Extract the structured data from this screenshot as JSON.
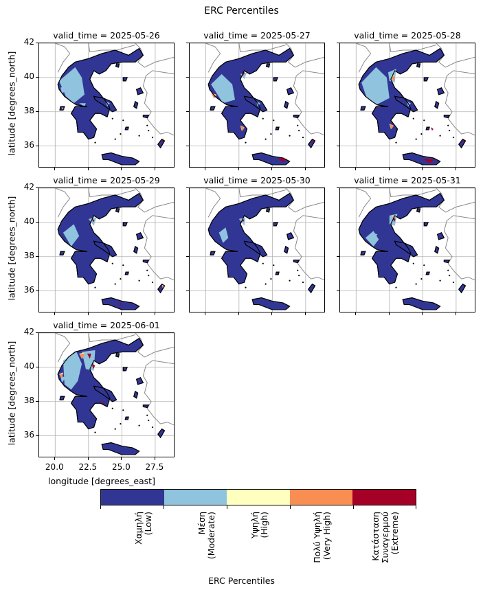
{
  "figure": {
    "title": "ERC Percentiles"
  },
  "panels": [
    {
      "label": "valid_time = 2025-05-26"
    },
    {
      "label": "valid_time = 2025-05-27"
    },
    {
      "label": "valid_time = 2025-05-28"
    },
    {
      "label": "valid_time = 2025-05-29"
    },
    {
      "label": "valid_time = 2025-05-30"
    },
    {
      "label": "valid_time = 2025-05-31"
    },
    {
      "label": "valid_time = 2025-06-01"
    }
  ],
  "axes": {
    "ylabel": "latitude [degrees_north]",
    "xlabel": "longitude [degrees_east]",
    "yticks": [
      "42",
      "40",
      "38",
      "36"
    ],
    "xticks": [
      "20.0",
      "22.5",
      "25.0",
      "27.5"
    ]
  },
  "colorbar": {
    "title": "ERC Percentiles",
    "categories": [
      {
        "label": "Χαμηλή\n(Low)",
        "color": "#313695"
      },
      {
        "label": "Μέση\n(Moderate)",
        "color": "#8fc3de"
      },
      {
        "label": "Υψηλή\n(High)",
        "color": "#ffffbf"
      },
      {
        "label": "Πολύ Υψηλή\n(Very High)",
        "color": "#f98e52"
      },
      {
        "label": "Κατάσταση\nΣυναγερμού\n(Extreme)",
        "color": "#a50026"
      }
    ]
  }
}
